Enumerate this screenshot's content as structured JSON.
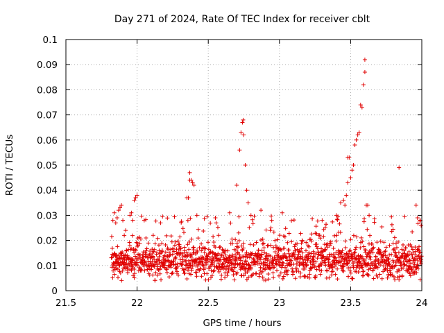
{
  "chart_data": {
    "type": "scatter",
    "title": "Day 271 of 2024, Rate Of TEC Index for receiver cblt",
    "xlabel": "GPS time / hours",
    "ylabel": "ROTI / TECUs",
    "xlim": [
      21.5,
      24
    ],
    "ylim": [
      0,
      0.1
    ],
    "xticks": [
      21.5,
      22,
      22.5,
      23,
      23.5,
      24
    ],
    "xtick_labels": [
      "21.5",
      "22",
      "22.5",
      "23",
      "23.5",
      "24"
    ],
    "yticks": [
      0,
      0.01,
      0.02,
      0.03,
      0.04,
      0.05,
      0.06,
      0.07,
      0.08,
      0.09,
      0.1
    ],
    "ytick_labels": [
      "0",
      "0.01",
      "0.02",
      "0.03",
      "0.04",
      "0.05",
      "0.06",
      "0.07",
      "0.08",
      "0.09",
      "0.1"
    ],
    "grid": true,
    "marker": "+",
    "marker_color": "#e00000",
    "data_start_hour": 21.82,
    "data_end_hour": 24.0,
    "background_band": {
      "baseline_min": 0.004,
      "baseline_max": 0.022,
      "typical": 0.012
    },
    "series": [
      {
        "name": "ROTI",
        "points": [
          [
            21.83,
            0.028
          ],
          [
            21.84,
            0.031
          ],
          [
            21.85,
            0.027
          ],
          [
            21.86,
            0.029
          ],
          [
            21.87,
            0.032
          ],
          [
            21.88,
            0.033
          ],
          [
            21.89,
            0.034
          ],
          [
            21.9,
            0.028
          ],
          [
            21.91,
            0.022
          ],
          [
            21.92,
            0.024
          ],
          [
            21.95,
            0.03
          ],
          [
            21.96,
            0.031
          ],
          [
            21.97,
            0.028
          ],
          [
            21.98,
            0.036
          ],
          [
            21.99,
            0.037
          ],
          [
            22.0,
            0.038
          ],
          [
            22.05,
            0.028
          ],
          [
            22.35,
            0.037
          ],
          [
            22.36,
            0.037
          ],
          [
            22.37,
            0.044
          ],
          [
            22.37,
            0.047
          ],
          [
            22.38,
            0.044
          ],
          [
            22.39,
            0.043
          ],
          [
            22.4,
            0.042
          ],
          [
            22.42,
            0.03
          ],
          [
            22.55,
            0.029
          ],
          [
            22.65,
            0.031
          ],
          [
            22.7,
            0.042
          ],
          [
            22.72,
            0.056
          ],
          [
            22.73,
            0.063
          ],
          [
            22.74,
            0.067
          ],
          [
            22.745,
            0.068
          ],
          [
            22.75,
            0.062
          ],
          [
            22.76,
            0.05
          ],
          [
            22.77,
            0.04
          ],
          [
            22.78,
            0.035
          ],
          [
            22.8,
            0.03
          ],
          [
            22.87,
            0.032
          ],
          [
            23.02,
            0.031
          ],
          [
            23.3,
            0.028
          ],
          [
            23.4,
            0.03
          ],
          [
            23.43,
            0.035
          ],
          [
            23.45,
            0.036
          ],
          [
            23.46,
            0.034
          ],
          [
            23.47,
            0.038
          ],
          [
            23.48,
            0.043
          ],
          [
            23.48,
            0.053
          ],
          [
            23.49,
            0.053
          ],
          [
            23.5,
            0.045
          ],
          [
            23.51,
            0.048
          ],
          [
            23.52,
            0.05
          ],
          [
            23.53,
            0.058
          ],
          [
            23.54,
            0.06
          ],
          [
            23.55,
            0.062
          ],
          [
            23.56,
            0.063
          ],
          [
            23.57,
            0.074
          ],
          [
            23.58,
            0.073
          ],
          [
            23.59,
            0.082
          ],
          [
            23.6,
            0.087
          ],
          [
            23.6,
            0.092
          ],
          [
            23.61,
            0.034
          ],
          [
            23.62,
            0.034
          ],
          [
            23.63,
            0.03
          ],
          [
            23.84,
            0.049
          ],
          [
            23.96,
            0.034
          ],
          [
            23.97,
            0.029
          ],
          [
            23.99,
            0.028
          ]
        ]
      }
    ]
  }
}
